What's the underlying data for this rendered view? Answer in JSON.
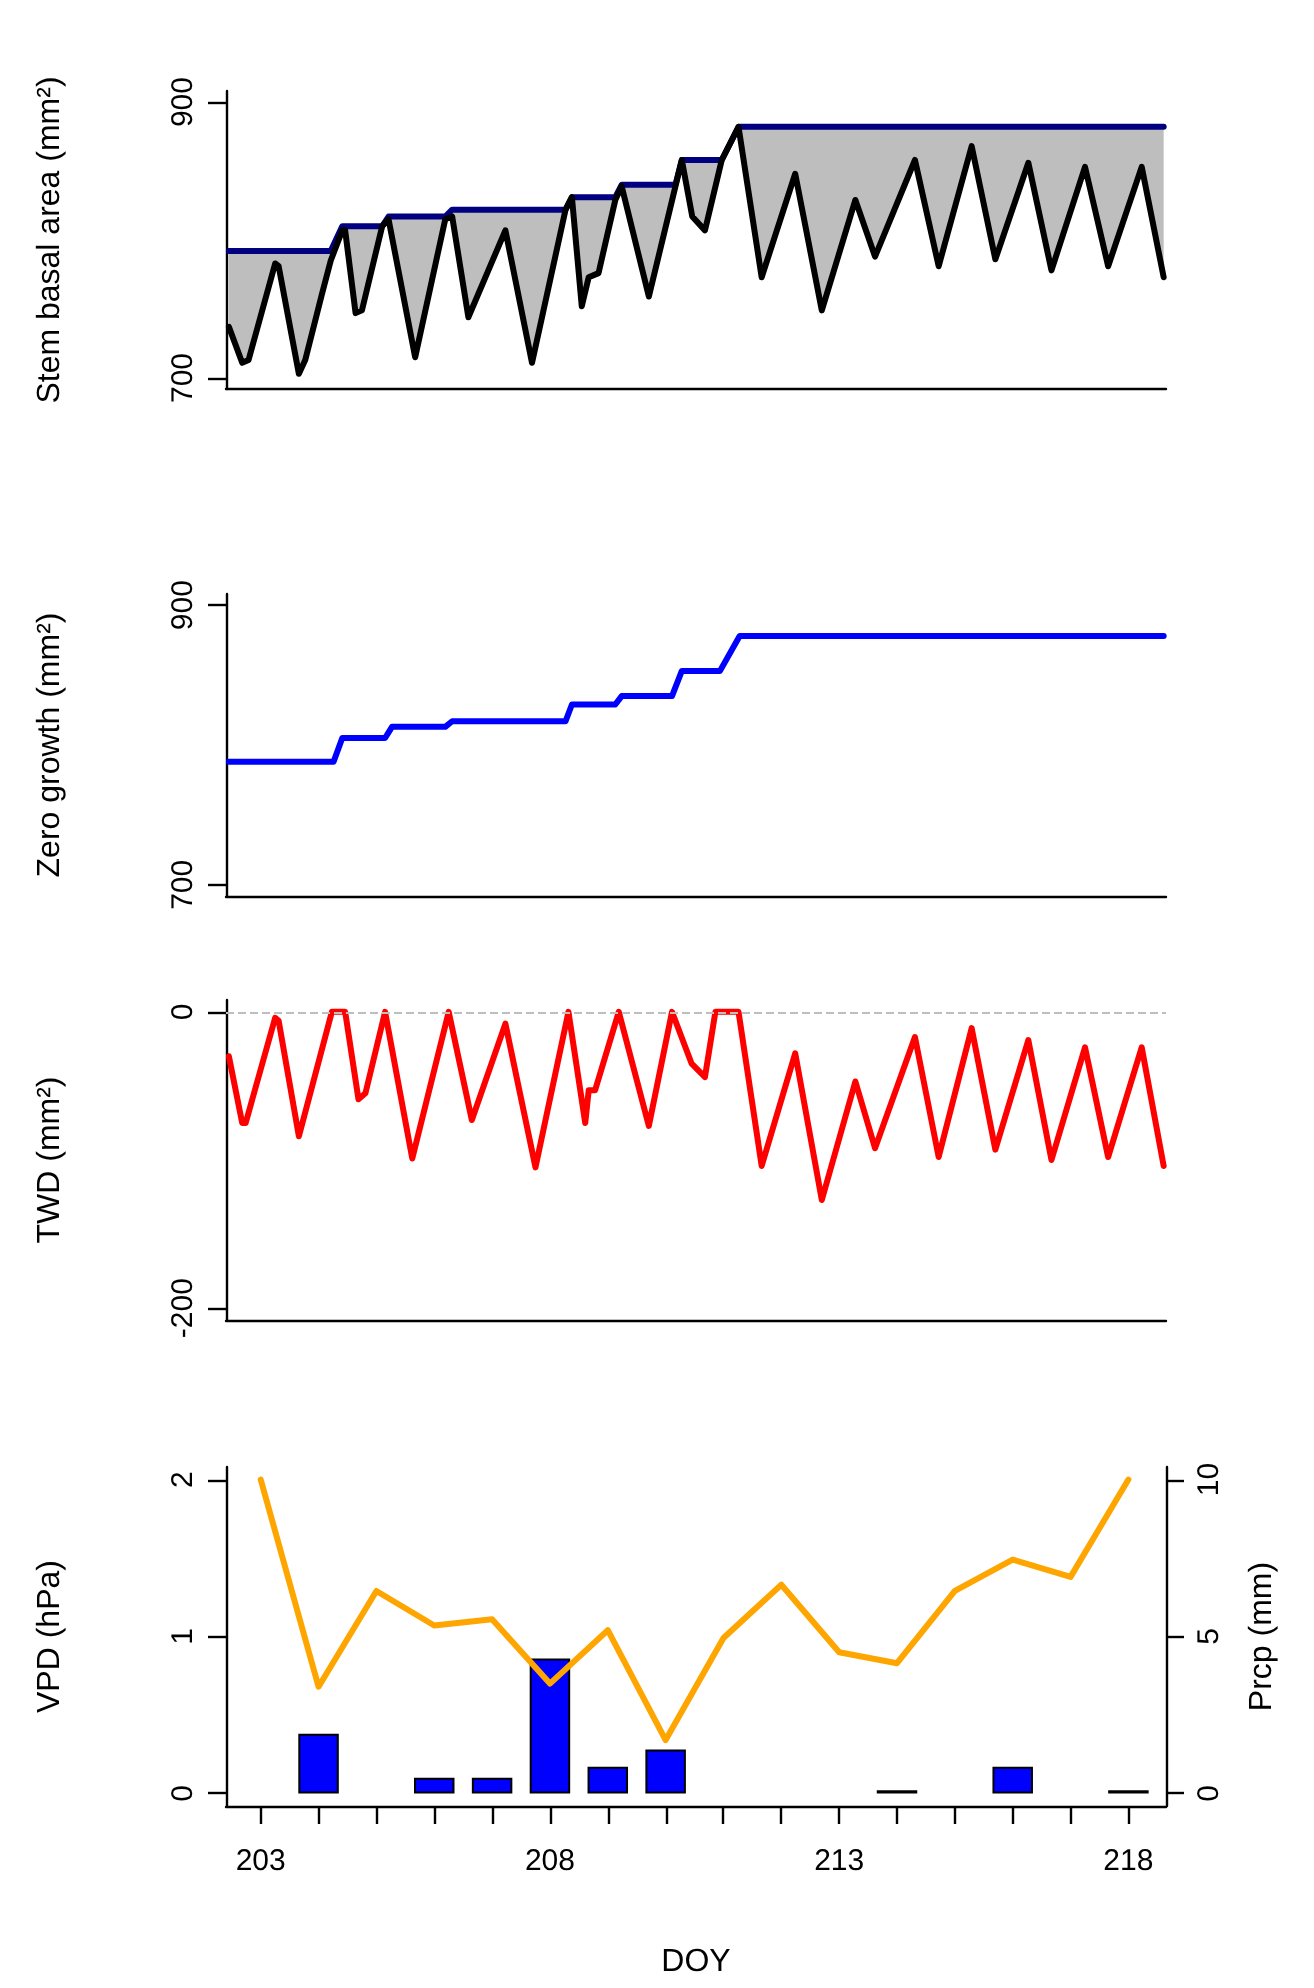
{
  "chart_data": [
    {
      "type": "line",
      "ylabel": "Stem basal area (mm²)",
      "xlim": [
        202.4,
        218.65
      ],
      "ylim": [
        692,
        908
      ],
      "yticks": [
        700,
        900
      ],
      "tick_labels": "y",
      "x": [
        202.45,
        202.68,
        202.79,
        203.25,
        203.31,
        203.66,
        203.77,
        204.06,
        204.21,
        204.41,
        204.46,
        204.64,
        204.75,
        205.1,
        205.21,
        205.67,
        206.19,
        206.31,
        206.59,
        207.23,
        207.69,
        208.27,
        208.38,
        208.55,
        208.67,
        208.84,
        209.13,
        209.24,
        209.71,
        210.17,
        210.28,
        210.46,
        210.68,
        210.97,
        211.26,
        211.66,
        212.24,
        212.7,
        213.28,
        213.62,
        214.31,
        214.72,
        215.29,
        215.7,
        216.27,
        216.67,
        217.25,
        217.65,
        218.23,
        218.61
      ],
      "series": [
        {
          "color": "#000080",
          "values": [
            792,
            792,
            792,
            792,
            792,
            792,
            792,
            792,
            792,
            810,
            810,
            810,
            810,
            810,
            817,
            817,
            817,
            822,
            822,
            822,
            822,
            822,
            831,
            831,
            831,
            831,
            831,
            840,
            840,
            840,
            858,
            858,
            858,
            858,
            882,
            882,
            882,
            882,
            882,
            882,
            882,
            882,
            882,
            882,
            882,
            882,
            882,
            882,
            882,
            882
          ]
        },
        {
          "color": "#000000",
          "values": [
            737,
            711,
            713,
            783,
            781,
            703,
            713,
            761,
            785,
            807,
            807,
            747,
            749,
            810,
            815,
            715,
            815,
            817,
            744,
            807,
            711,
            822,
            831,
            752,
            773,
            776,
            829,
            839,
            759,
            839,
            858,
            817,
            807,
            858,
            882,
            773,
            848,
            749,
            829,
            788,
            858,
            781,
            868,
            786,
            856,
            778,
            853,
            781,
            853,
            773
          ],
          "lower": [
            737,
            711,
            713,
            783,
            781,
            703,
            713,
            761,
            785,
            807,
            807,
            747,
            749,
            810,
            815,
            715,
            815,
            817,
            744,
            807,
            711,
            822,
            831,
            752,
            773,
            776,
            829,
            839,
            759,
            839,
            858,
            817,
            807,
            858,
            882,
            773,
            848,
            749,
            829,
            788,
            858,
            781,
            868,
            786,
            856,
            778,
            853,
            781,
            853,
            773
          ],
          "upper": [
            792,
            792,
            792,
            792,
            792,
            792,
            792,
            792,
            792,
            810,
            810,
            810,
            810,
            810,
            817,
            817,
            817,
            822,
            822,
            822,
            822,
            822,
            831,
            831,
            831,
            831,
            831,
            840,
            840,
            840,
            858,
            858,
            858,
            858,
            882,
            882,
            882,
            882,
            882,
            882,
            882,
            882,
            882,
            882,
            882,
            882,
            882,
            882,
            882,
            882
          ]
        }
      ]
    },
    {
      "type": "line",
      "ylabel": "Zero growth (mm²)",
      "xlim": [
        202.4,
        218.65
      ],
      "ylim": [
        692,
        908
      ],
      "yticks": [
        700,
        900
      ],
      "tick_labels": "y",
      "x": [
        202.45,
        204.26,
        204.41,
        205.15,
        205.27,
        206.19,
        206.31,
        208.27,
        208.38,
        209.13,
        209.24,
        210.11,
        210.28,
        210.94,
        211.28,
        218.61
      ],
      "series": [
        {
          "color": "#0000ff",
          "values": [
            788,
            788,
            805,
            805,
            813,
            813,
            817,
            817,
            829,
            829,
            835,
            835,
            853,
            853,
            878,
            878
          ]
        }
      ]
    },
    {
      "type": "line",
      "ylabel": "TWD (mm²)",
      "xlim": [
        202.4,
        218.65
      ],
      "ylim": [
        -208,
        8
      ],
      "yticks": [
        -200,
        0
      ],
      "tick_labels": "y",
      "ref_lines": [
        {
          "axis": "y",
          "value": 0,
          "color": "#bebebe",
          "line_style": "dashed"
        }
      ],
      "x": [
        202.45,
        202.68,
        202.74,
        203.25,
        203.31,
        203.66,
        204.23,
        204.46,
        204.69,
        204.81,
        205.15,
        205.62,
        206.25,
        206.65,
        207.23,
        207.75,
        208.32,
        208.61,
        208.67,
        208.78,
        209.19,
        209.71,
        210.11,
        210.45,
        210.68,
        210.86,
        211.26,
        211.66,
        212.24,
        212.7,
        213.28,
        213.62,
        214.31,
        214.72,
        215.29,
        215.7,
        216.27,
        216.67,
        217.25,
        217.65,
        218.23,
        218.61
      ],
      "series": [
        {
          "color": "#ff0000",
          "values": [
            -30,
            -75,
            -75,
            -4,
            -6,
            -84,
            0,
            0,
            -59,
            -55,
            0,
            -99,
            0,
            -73,
            -8,
            -105,
            0,
            -75,
            -53,
            -53,
            0,
            -77,
            0,
            -35,
            -44,
            0,
            0,
            -104,
            -28,
            -127,
            -47,
            -92,
            -17,
            -98,
            -11,
            -93,
            -19,
            -100,
            -24,
            -98,
            -24,
            -104
          ]
        }
      ]
    },
    {
      "type": "line",
      "xlabel": "DOY",
      "ylabel": "VPD (hPa)",
      "y2label": "Prcp (mm)",
      "xlim": [
        202.4,
        218.65
      ],
      "xticks": [
        203,
        {
          "value": 204,
          "label": null
        },
        {
          "value": 205,
          "label": null
        },
        {
          "value": 206,
          "label": null
        },
        {
          "value": 207,
          "label": null
        },
        208,
        {
          "value": 209,
          "label": null
        },
        {
          "value": 210,
          "label": null
        },
        {
          "value": 211,
          "label": null
        },
        {
          "value": 212,
          "label": null
        },
        213,
        {
          "value": 214,
          "label": null
        },
        {
          "value": 215,
          "label": null
        },
        {
          "value": 216,
          "label": null
        },
        {
          "value": 217,
          "label": null
        },
        218
      ],
      "ylim": [
        -0.08,
        2.08
      ],
      "yticks": [
        0,
        1,
        2
      ],
      "y2lim": [
        -0.4,
        10.4
      ],
      "y2ticks": [
        0,
        5,
        10
      ],
      "x": [
        203,
        204,
        205,
        206,
        207,
        208,
        209,
        210,
        211,
        212,
        213,
        214,
        215,
        216,
        217,
        218
      ],
      "series": [
        {
          "type": "bar",
          "axis": "y2",
          "color": "#0000ff",
          "values": [
            0,
            1.9,
            0,
            0.5,
            0.5,
            4.3,
            0.85,
            1.4,
            0,
            0,
            0,
            0.1,
            0,
            0.85,
            0,
            0.1
          ]
        },
        {
          "color": "#ffa500",
          "values": [
            2.0,
            0.68,
            1.29,
            1.07,
            1.11,
            0.7,
            1.04,
            0.34,
            0.99,
            1.33,
            0.9,
            0.83,
            1.29,
            1.49,
            1.38,
            2.0
          ]
        }
      ]
    }
  ]
}
